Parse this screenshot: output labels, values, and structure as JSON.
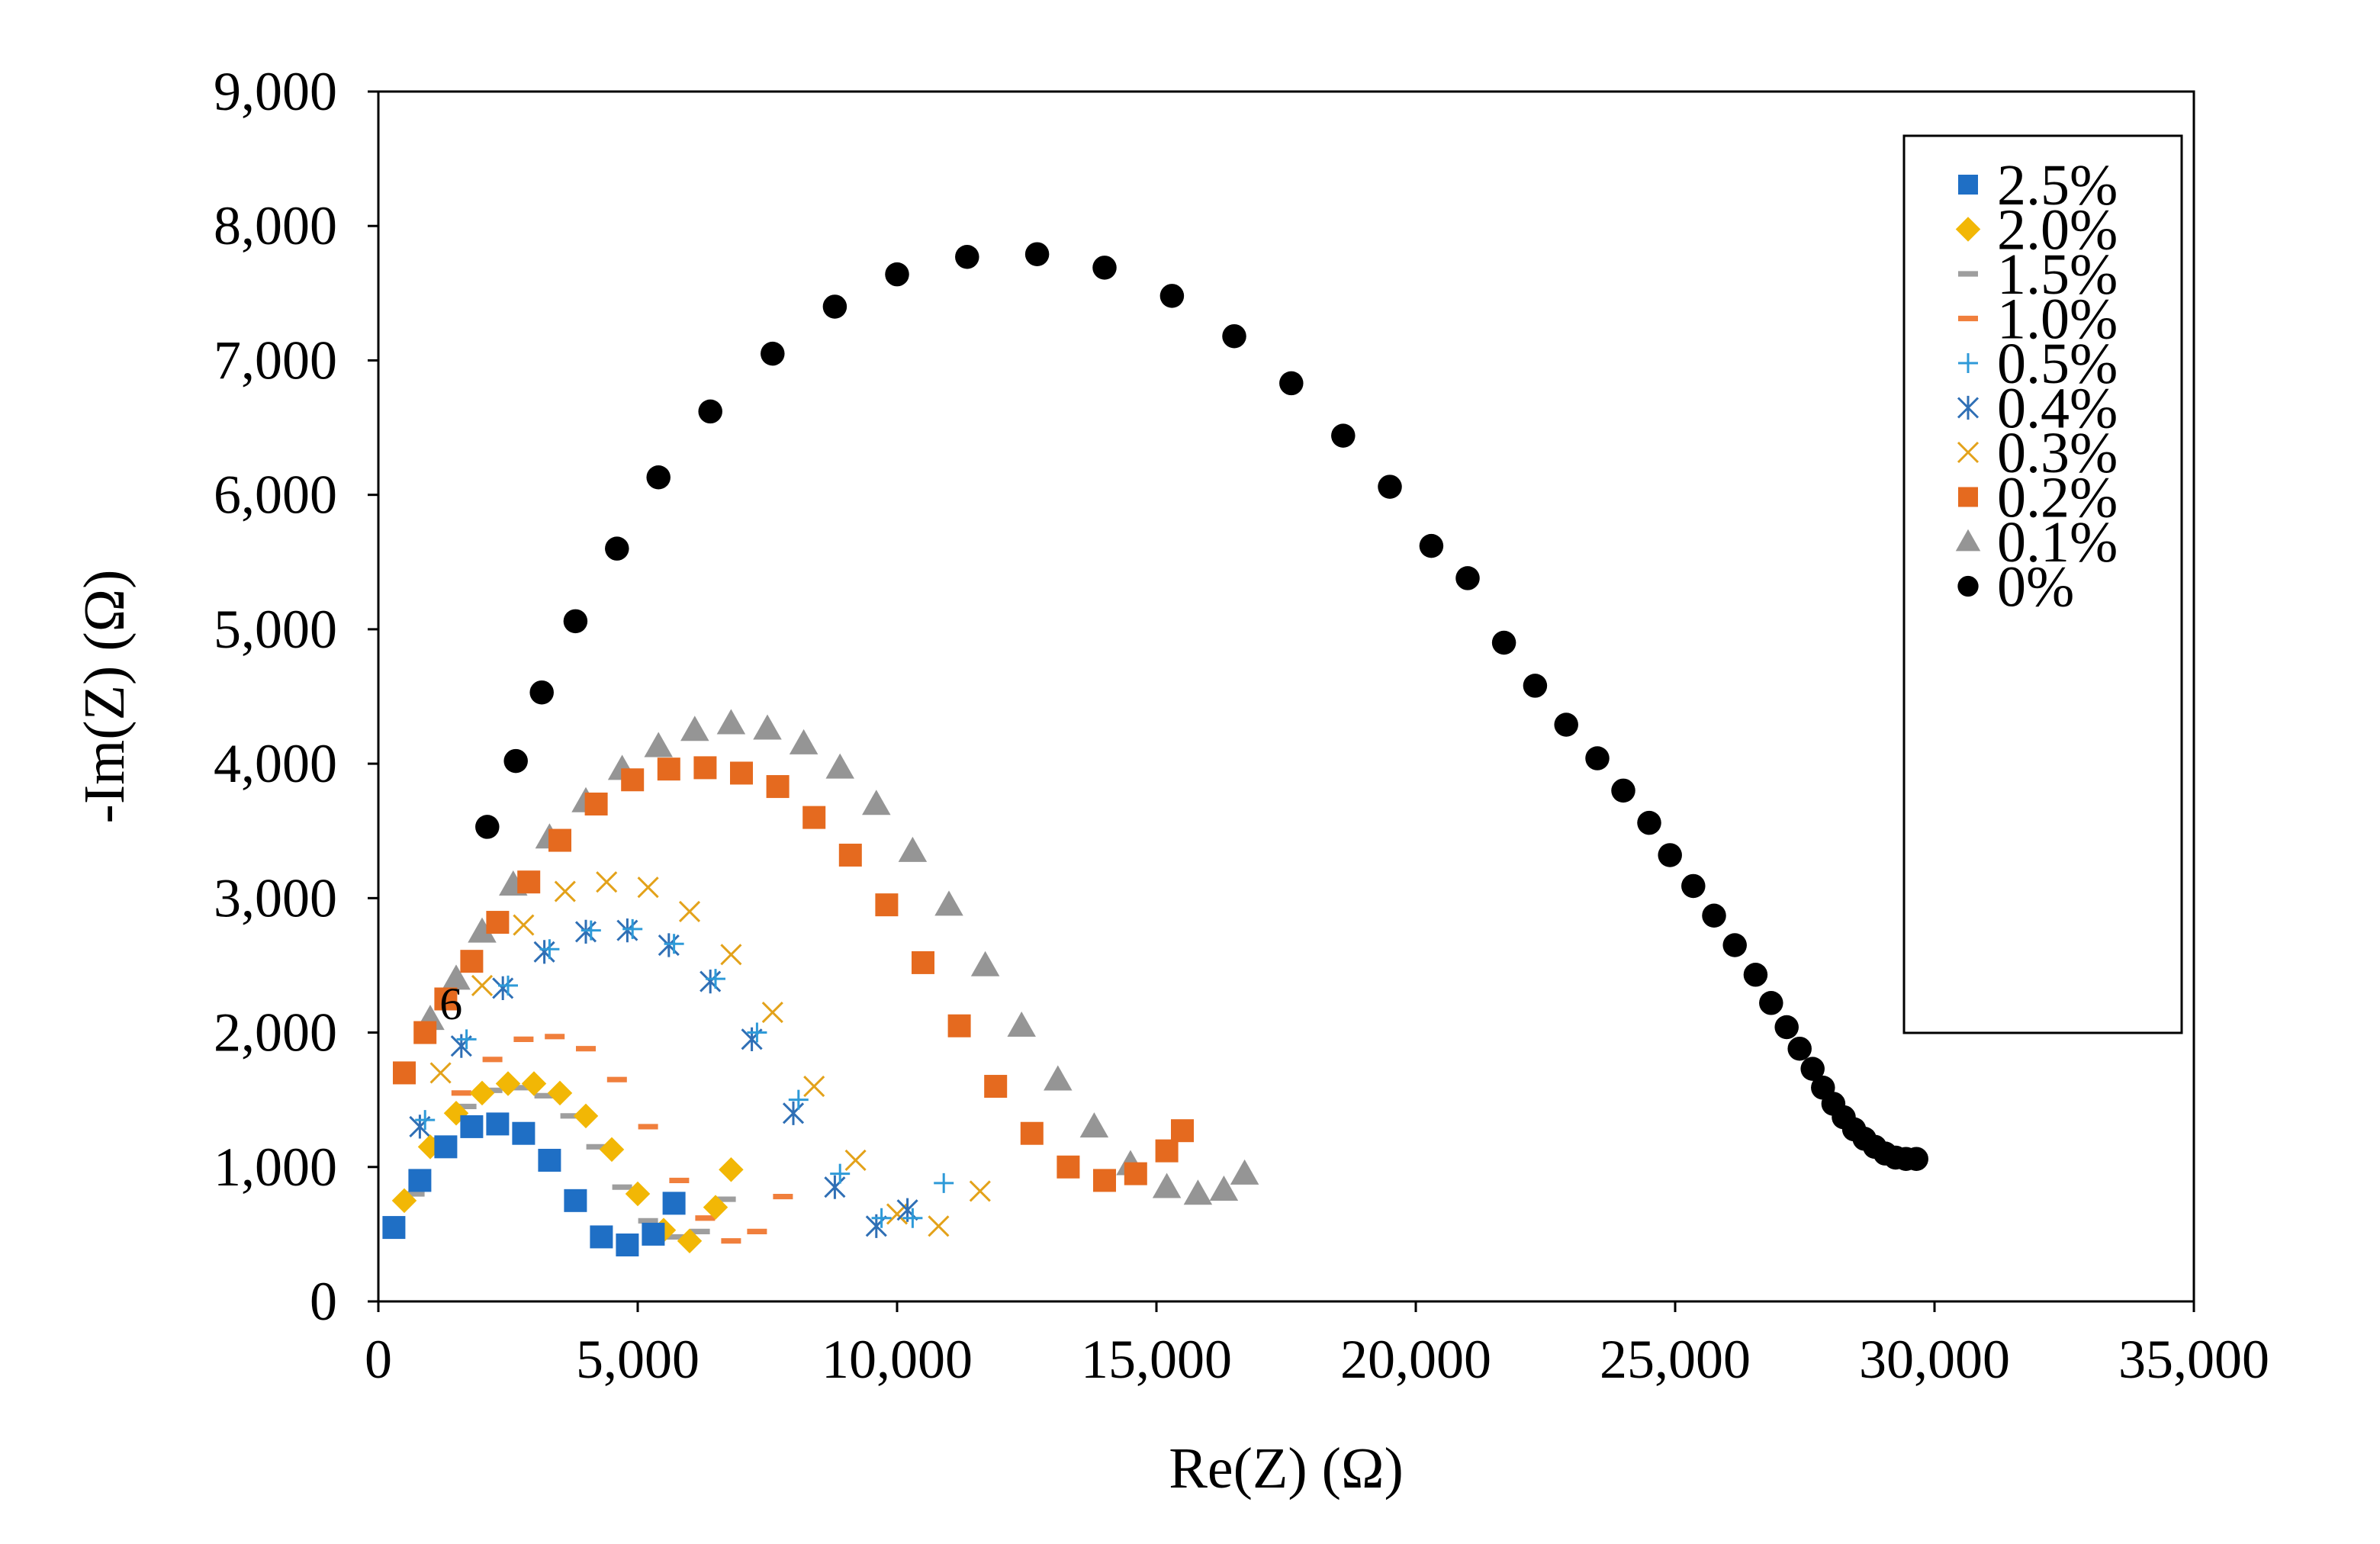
{
  "chart_data": {
    "type": "scatter",
    "title": "",
    "xlabel": "Re(Z) (Ω)",
    "ylabel": "-Im(Z) (Ω)",
    "xlim": [
      0,
      35000
    ],
    "ylim": [
      0,
      9000
    ],
    "x_ticks": [
      0,
      5000,
      10000,
      15000,
      20000,
      25000,
      30000,
      35000
    ],
    "x_tick_labels": [
      "0",
      "5,000",
      "10,000",
      "15,000",
      "20,000",
      "25,000",
      "30,000",
      "35,000"
    ],
    "y_ticks": [
      0,
      1000,
      2000,
      3000,
      4000,
      5000,
      6000,
      7000,
      8000,
      9000
    ],
    "y_tick_labels": [
      "0",
      "1,000",
      "2,000",
      "3,000",
      "4,000",
      "5,000",
      "6,000",
      "7,000",
      "8,000",
      "9,000"
    ],
    "grid": false,
    "legend_position": "top-right",
    "annotations": [
      {
        "text": "6",
        "x": 1400,
        "y": 2100
      }
    ],
    "series": [
      {
        "name": "2.5%",
        "marker": "square",
        "color": "#1f6fc5",
        "x": [
          300,
          800,
          1300,
          1800,
          2300,
          2800,
          3300,
          3800,
          4300,
          4800,
          5300,
          5700
        ],
        "y": [
          550,
          900,
          1150,
          1300,
          1320,
          1250,
          1050,
          750,
          480,
          420,
          500,
          730
        ]
      },
      {
        "name": "2.0%",
        "marker": "diamond",
        "color": "#f2b705",
        "x": [
          500,
          1000,
          1500,
          2000,
          2500,
          3000,
          3500,
          4000,
          4500,
          5000,
          5500,
          6000,
          6500,
          6800
        ],
        "y": [
          750,
          1150,
          1400,
          1550,
          1620,
          1620,
          1550,
          1380,
          1130,
          800,
          530,
          450,
          700,
          980
        ]
      },
      {
        "name": "1.5%",
        "marker": "dash",
        "color": "#9e9e9e",
        "x": [
          700,
          1200,
          1700,
          2200,
          2700,
          3200,
          3700,
          4200,
          4700,
          5200,
          5700,
          6200,
          6700
        ],
        "y": [
          800,
          1200,
          1450,
          1570,
          1590,
          1530,
          1380,
          1150,
          850,
          600,
          480,
          520,
          760
        ]
      },
      {
        "name": "1.0%",
        "marker": "dash",
        "color": "#f07f3c",
        "x": [
          1000,
          1600,
          2200,
          2800,
          3400,
          4000,
          4600,
          5200,
          5800,
          6300,
          6800,
          7300,
          7800
        ],
        "y": [
          1150,
          1550,
          1800,
          1950,
          1970,
          1880,
          1650,
          1300,
          900,
          620,
          450,
          520,
          780
        ]
      },
      {
        "name": "0.5%",
        "marker": "plus",
        "color": "#2e9ad8",
        "x": [
          900,
          1700,
          2500,
          3300,
          4100,
          4900,
          5700,
          6500,
          7300,
          8100,
          8900,
          9700,
          10300,
          10900
        ],
        "y": [
          1350,
          1950,
          2350,
          2620,
          2760,
          2770,
          2660,
          2400,
          2000,
          1500,
          950,
          620,
          620,
          880
        ]
      },
      {
        "name": "0.4%",
        "marker": "star",
        "color": "#2f6fb5",
        "x": [
          800,
          1600,
          2400,
          3200,
          4000,
          4800,
          5600,
          6400,
          7200,
          8000,
          8800,
          9600,
          10200
        ],
        "y": [
          1300,
          1900,
          2330,
          2600,
          2750,
          2760,
          2650,
          2380,
          1950,
          1400,
          850,
          560,
          680
        ]
      },
      {
        "name": "0.3%",
        "marker": "x",
        "color": "#e3a21a",
        "x": [
          1200,
          2000,
          2800,
          3600,
          4400,
          5200,
          6000,
          6800,
          7600,
          8400,
          9200,
          10000,
          10800,
          11600
        ],
        "y": [
          1700,
          2350,
          2800,
          3050,
          3120,
          3080,
          2900,
          2580,
          2150,
          1600,
          1050,
          650,
          560,
          820
        ]
      },
      {
        "name": "0.2%",
        "marker": "square",
        "color": "#e56a1f",
        "x": [
          500,
          900,
          1300,
          1800,
          2300,
          2900,
          3500,
          4200,
          4900,
          5600,
          6300,
          7000,
          7700,
          8400,
          9100,
          9800,
          10500,
          11200,
          11900,
          12600,
          13300,
          14000,
          14600,
          15200,
          15500
        ],
        "y": [
          1700,
          2000,
          2250,
          2530,
          2820,
          3120,
          3430,
          3700,
          3880,
          3960,
          3970,
          3930,
          3830,
          3600,
          3320,
          2950,
          2520,
          2050,
          1600,
          1250,
          1000,
          900,
          950,
          1120,
          1270
        ]
      },
      {
        "name": "0.1%",
        "marker": "triangle",
        "color": "#959595",
        "x": [
          1000,
          1500,
          2000,
          2600,
          3300,
          4000,
          4700,
          5400,
          6100,
          6800,
          7500,
          8200,
          8900,
          9600,
          10300,
          11000,
          11700,
          12400,
          13100,
          13800,
          14500,
          15200,
          15800,
          16300,
          16700
        ],
        "y": [
          2100,
          2400,
          2750,
          3100,
          3450,
          3720,
          3960,
          4130,
          4250,
          4300,
          4260,
          4150,
          3970,
          3700,
          3350,
          2950,
          2500,
          2050,
          1650,
          1300,
          1020,
          850,
          800,
          830,
          950
        ]
      },
      {
        "name": "0%",
        "marker": "circle",
        "color": "#000000",
        "x": [
          2100,
          2650,
          3150,
          3800,
          4600,
          5400,
          6400,
          7600,
          8800,
          10000,
          11350,
          12700,
          14000,
          15300,
          16500,
          17600,
          18600,
          19500,
          20300,
          21000,
          21700,
          22300,
          22900,
          23500,
          24000,
          24500,
          24900,
          25350,
          25750,
          26150,
          26550,
          26850,
          27150,
          27400,
          27650,
          27850,
          28050,
          28250,
          28450,
          28650,
          28850,
          29050,
          29250,
          29450,
          29650
        ],
        "y": [
          3530,
          4020,
          4530,
          5060,
          5600,
          6130,
          6620,
          7050,
          7400,
          7640,
          7770,
          7790,
          7690,
          7480,
          7180,
          6830,
          6440,
          6060,
          5620,
          5380,
          4900,
          4580,
          4290,
          4040,
          3800,
          3560,
          3320,
          3090,
          2870,
          2650,
          2430,
          2220,
          2040,
          1880,
          1730,
          1590,
          1470,
          1370,
          1280,
          1210,
          1150,
          1100,
          1070,
          1060,
          1060
        ]
      }
    ]
  }
}
